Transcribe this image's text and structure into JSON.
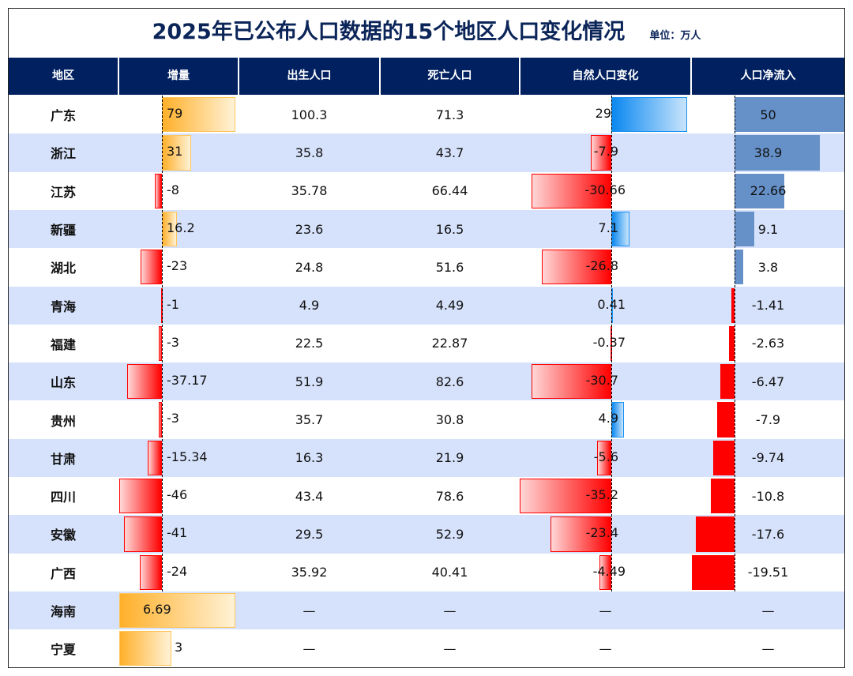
{
  "title": "2025年已公布人口数据的15个地区人口变化情况",
  "unit": "单位：万人",
  "headers": [
    "地区",
    "增量",
    "出生人口",
    "死亡人口",
    "自然人口变化",
    "人口净流入"
  ],
  "colors": {
    "header_bg": "#002060",
    "row_alt": "#D6E2FB",
    "positive_increase": "#FFB02A",
    "negative": "#FF0000",
    "natural_positive": "#0A88F0",
    "net_inflow_positive": "#6590C8"
  },
  "chart_data": {
    "type": "table",
    "columns": [
      "地区",
      "增量",
      "出生人口",
      "死亡人口",
      "自然人口变化",
      "人口净流入"
    ],
    "rows": [
      {
        "region": "广东",
        "increase": "79",
        "births": "100.3",
        "deaths": "71.3",
        "natural": "29",
        "net": "50"
      },
      {
        "region": "浙江",
        "increase": "31",
        "births": "35.8",
        "deaths": "43.7",
        "natural": "-7.9",
        "net": "38.9"
      },
      {
        "region": "江苏",
        "increase": "-8",
        "births": "35.78",
        "deaths": "66.44",
        "natural": "-30.66",
        "net": "22.66"
      },
      {
        "region": "新疆",
        "increase": "16.2",
        "births": "23.6",
        "deaths": "16.5",
        "natural": "7.1",
        "net": "9.1"
      },
      {
        "region": "湖北",
        "increase": "-23",
        "births": "24.8",
        "deaths": "51.6",
        "natural": "-26.8",
        "net": "3.8"
      },
      {
        "region": "青海",
        "increase": "-1",
        "births": "4.9",
        "deaths": "4.49",
        "natural": "0.41",
        "net": "-1.41"
      },
      {
        "region": "福建",
        "increase": "-3",
        "births": "22.5",
        "deaths": "22.87",
        "natural": "-0.37",
        "net": "-2.63"
      },
      {
        "region": "山东",
        "increase": "-37.17",
        "births": "51.9",
        "deaths": "82.6",
        "natural": "-30.7",
        "net": "-6.47"
      },
      {
        "region": "贵州",
        "increase": "-3",
        "births": "35.7",
        "deaths": "30.8",
        "natural": "4.9",
        "net": "-7.9"
      },
      {
        "region": "甘肃",
        "increase": "-15.34",
        "births": "16.3",
        "deaths": "21.9",
        "natural": "-5.6",
        "net": "-9.74"
      },
      {
        "region": "四川",
        "increase": "-46",
        "births": "43.4",
        "deaths": "78.6",
        "natural": "-35.2",
        "net": "-10.8"
      },
      {
        "region": "安徽",
        "increase": "-41",
        "births": "29.5",
        "deaths": "52.9",
        "natural": "-23.4",
        "net": "-17.6"
      },
      {
        "region": "广西",
        "increase": "-24",
        "births": "35.92",
        "deaths": "40.41",
        "natural": "-4.49",
        "net": "-19.51"
      },
      {
        "region": "海南",
        "increase": "6.69",
        "births": "—",
        "deaths": "—",
        "natural": "—",
        "net": "—"
      },
      {
        "region": "宁夏",
        "increase": "3",
        "births": "—",
        "deaths": "—",
        "natural": "—",
        "net": "—"
      }
    ]
  }
}
